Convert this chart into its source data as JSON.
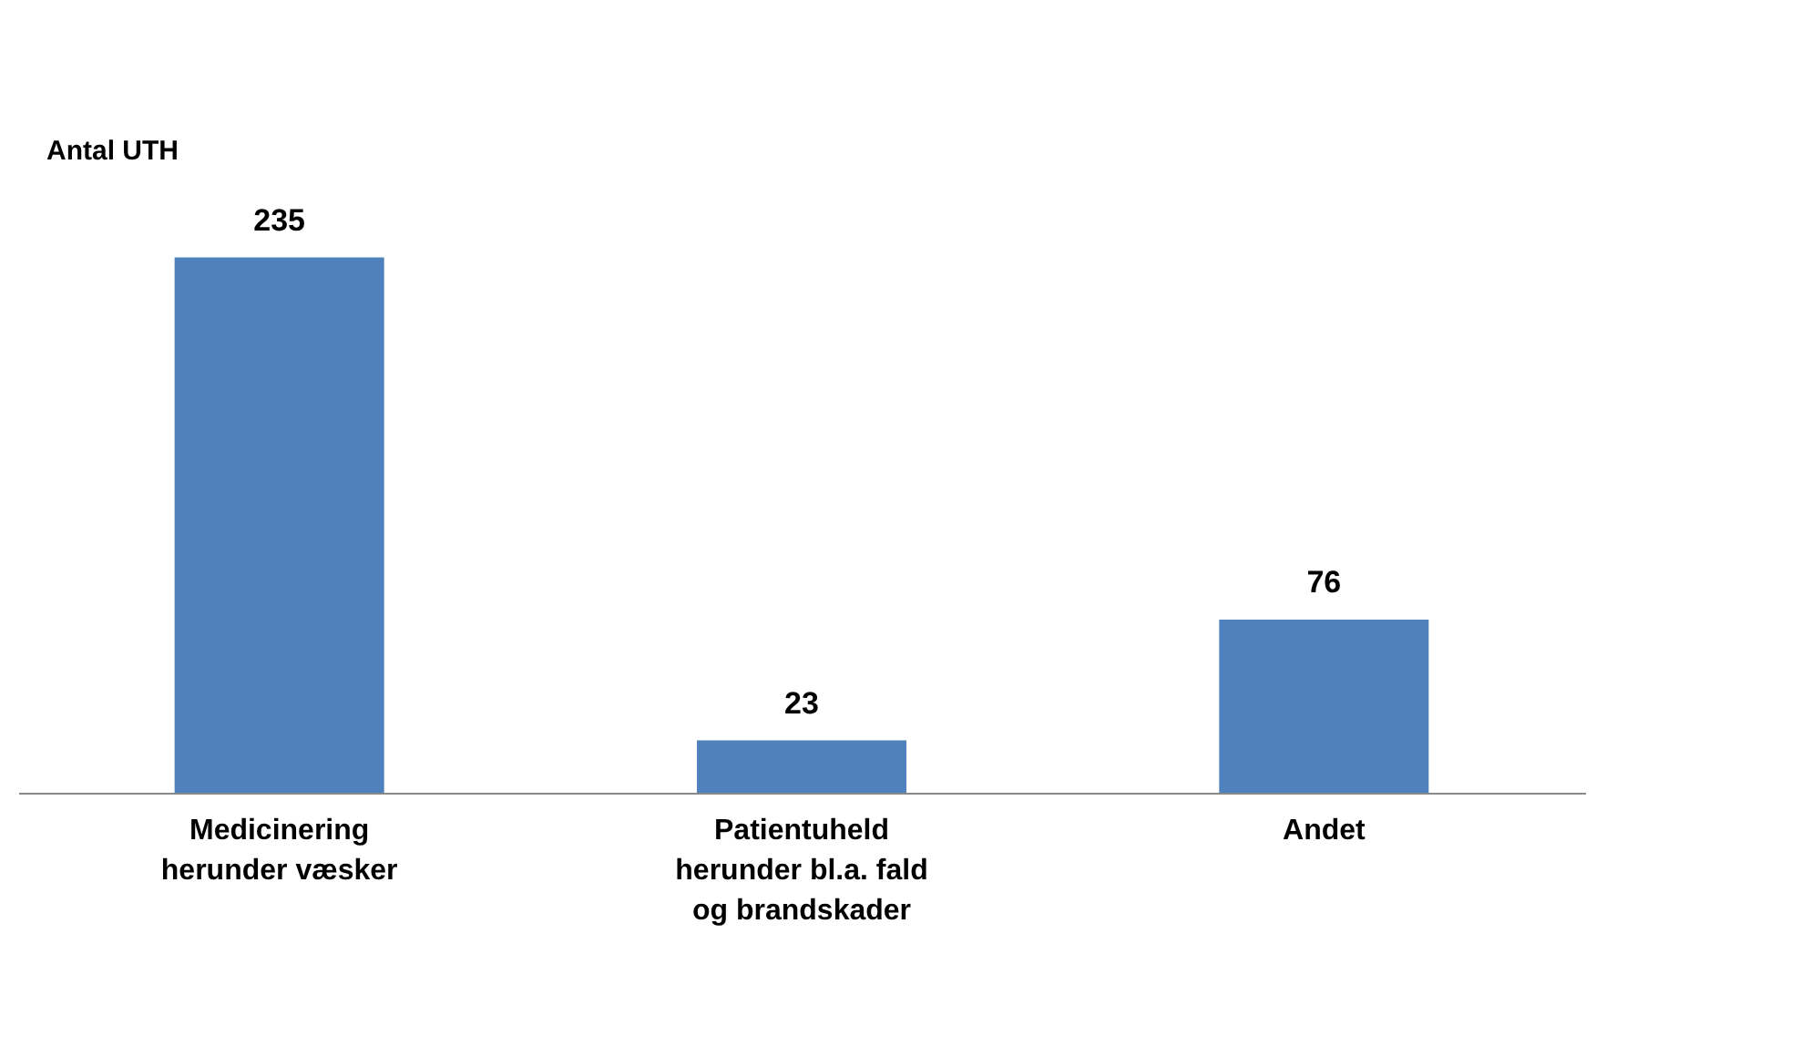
{
  "chart_data": {
    "type": "bar",
    "ylabel": "Antal UTH",
    "categories": [
      "Medicinering\nherunder væsker",
      "Patientuheld\nherunder bl.a. fald\nog brandskader",
      "Andet"
    ],
    "values": [
      235,
      23,
      76
    ],
    "color": "#4f81bd",
    "data_labels": true,
    "grid": false,
    "tick_labels": "x"
  }
}
